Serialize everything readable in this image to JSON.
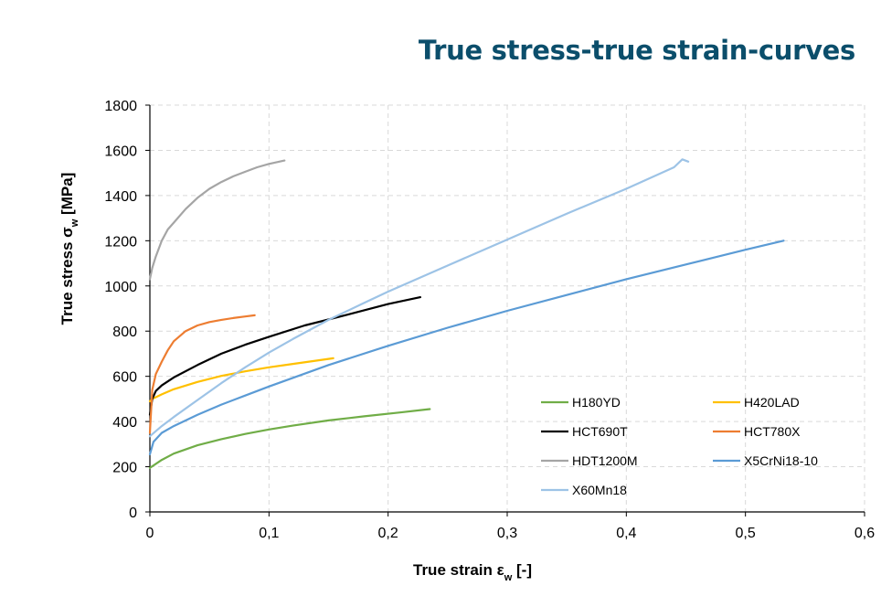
{
  "chart_data": {
    "type": "line",
    "title": "True stress-true strain-curves",
    "xlabel": "True strain εw [-]",
    "ylabel": "True stress σw [MPa]",
    "xlim": [
      0,
      0.6
    ],
    "ylim": [
      0,
      1800
    ],
    "x_ticks": [
      "0",
      "0,1",
      "0,2",
      "0,3",
      "0,4",
      "0,5",
      "0,6"
    ],
    "y_ticks": [
      "0",
      "200",
      "400",
      "600",
      "800",
      "1000",
      "1200",
      "1400",
      "1600",
      "1800"
    ],
    "grid": true,
    "legend_position": "bottom-right",
    "series": [
      {
        "name": "H180YD",
        "color": "#70ad47",
        "x": [
          0,
          0.01,
          0.02,
          0.04,
          0.06,
          0.08,
          0.1,
          0.12,
          0.15,
          0.18,
          0.21,
          0.235
        ],
        "y": [
          195,
          230,
          258,
          295,
          322,
          345,
          365,
          382,
          405,
          423,
          440,
          455
        ]
      },
      {
        "name": "H420LAD",
        "color": "#ffc000",
        "x": [
          0,
          0.002,
          0.01,
          0.02,
          0.04,
          0.06,
          0.08,
          0.1,
          0.12,
          0.154
        ],
        "y": [
          490,
          500,
          520,
          543,
          575,
          602,
          622,
          640,
          655,
          680
        ]
      },
      {
        "name": "HCT690T",
        "color": "#000000",
        "x": [
          0,
          0.002,
          0.005,
          0.01,
          0.02,
          0.04,
          0.06,
          0.08,
          0.1,
          0.13,
          0.16,
          0.2,
          0.227
        ],
        "y": [
          430,
          500,
          535,
          560,
          595,
          650,
          700,
          740,
          775,
          825,
          865,
          920,
          950
        ]
      },
      {
        "name": "HCT780X",
        "color": "#ed7d31",
        "x": [
          0,
          0.002,
          0.005,
          0.01,
          0.015,
          0.02,
          0.03,
          0.04,
          0.05,
          0.06,
          0.07,
          0.08,
          0.088
        ],
        "y": [
          350,
          540,
          610,
          665,
          715,
          755,
          800,
          825,
          840,
          850,
          858,
          865,
          870
        ]
      },
      {
        "name": "HDT1200M",
        "color": "#a5a5a5",
        "x": [
          0,
          0.002,
          0.005,
          0.01,
          0.015,
          0.02,
          0.03,
          0.04,
          0.05,
          0.06,
          0.07,
          0.08,
          0.09,
          0.1,
          0.113
        ],
        "y": [
          1030,
          1080,
          1130,
          1200,
          1250,
          1280,
          1340,
          1390,
          1430,
          1460,
          1485,
          1505,
          1525,
          1540,
          1555
        ]
      },
      {
        "name": "X5CrNi18-10",
        "color": "#5b9bd5",
        "x": [
          0,
          0.003,
          0.01,
          0.02,
          0.04,
          0.06,
          0.08,
          0.1,
          0.15,
          0.2,
          0.25,
          0.3,
          0.35,
          0.4,
          0.45,
          0.5,
          0.532
        ],
        "y": [
          255,
          310,
          350,
          380,
          430,
          475,
          515,
          555,
          650,
          735,
          815,
          890,
          960,
          1030,
          1095,
          1160,
          1200
        ]
      },
      {
        "name": "X60Mn18",
        "color": "#9dc3e6",
        "x": [
          0,
          0.01,
          0.02,
          0.04,
          0.06,
          0.08,
          0.1,
          0.12,
          0.15,
          0.18,
          0.2,
          0.25,
          0.3,
          0.35,
          0.4,
          0.44,
          0.447,
          0.452
        ],
        "y": [
          335,
          380,
          420,
          495,
          570,
          640,
          705,
          765,
          850,
          925,
          975,
          1090,
          1205,
          1320,
          1430,
          1525,
          1560,
          1550
        ]
      }
    ]
  }
}
